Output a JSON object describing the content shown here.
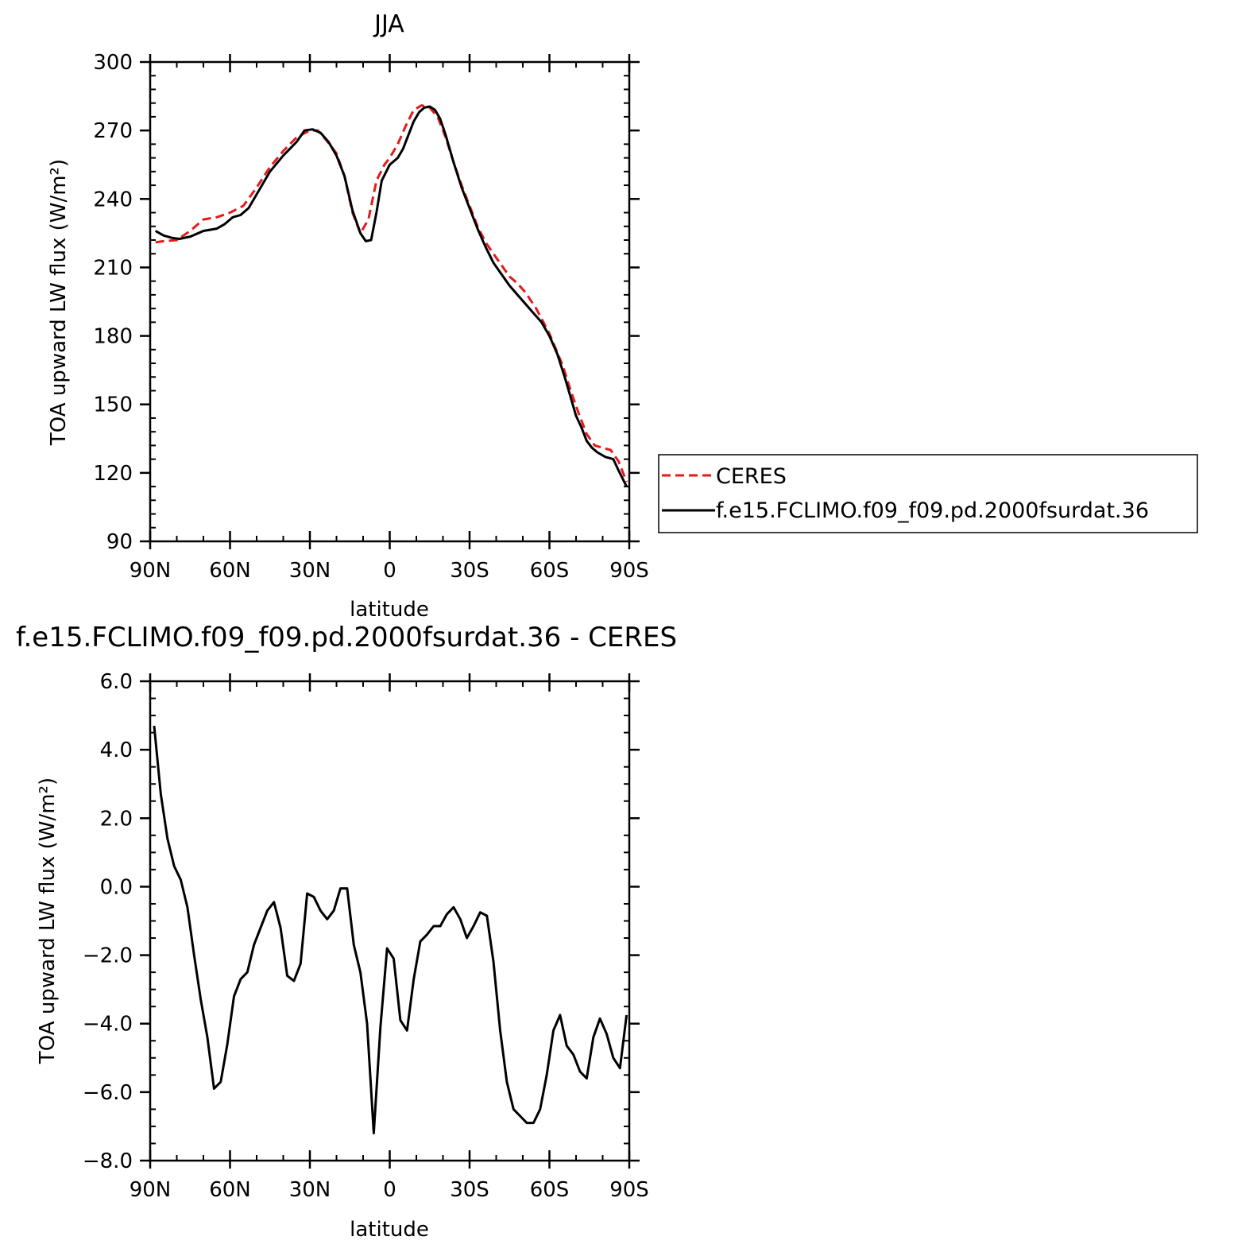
{
  "chart_data": [
    {
      "type": "line",
      "title": "JJA",
      "xlabel": "latitude",
      "ylabel": "TOA upward LW flux (W/m²)",
      "xlim": [
        -90,
        90
      ],
      "ylim": [
        90,
        300
      ],
      "x_ticks": [
        -90,
        -60,
        -30,
        0,
        30,
        60,
        90
      ],
      "x_tick_labels": [
        "90N",
        "60N",
        "30N",
        "0",
        "30S",
        "60S",
        "90S"
      ],
      "y_ticks": [
        90,
        120,
        150,
        180,
        210,
        240,
        270,
        300
      ],
      "y_tick_labels": [
        "90",
        "120",
        "150",
        "180",
        "210",
        "240",
        "270",
        "300"
      ],
      "legend_position": "right",
      "series": [
        {
          "name": "CERES",
          "color": "#e41a1c",
          "dash": "dashed",
          "x": [
            -88,
            -85,
            -80,
            -75,
            -70,
            -65,
            -60,
            -55,
            -50,
            -45,
            -40,
            -35,
            -30,
            -27,
            -24,
            -20,
            -17,
            -14,
            -11,
            -8,
            -5,
            -2,
            0,
            3,
            6,
            9,
            12,
            15,
            18,
            21,
            24,
            27,
            30,
            33,
            36,
            39,
            42,
            45,
            48,
            51,
            55,
            60,
            65,
            68,
            71,
            74,
            77,
            80,
            83,
            86,
            89
          ],
          "values": [
            221,
            221.5,
            222,
            226,
            231,
            232,
            234,
            237,
            245,
            254,
            261,
            267,
            270,
            270,
            266,
            260,
            250,
            234,
            225,
            231,
            248,
            255,
            258,
            264,
            272,
            279,
            281,
            280,
            276,
            267,
            256,
            246,
            237,
            228,
            221,
            216,
            211,
            206,
            203,
            199,
            192,
            181,
            167,
            156,
            146,
            137,
            132,
            131,
            130,
            125,
            116
          ]
        },
        {
          "name": "f.e15.FCLIMO.f09_f09.pd.2000fsurdat.36",
          "color": "#000000",
          "dash": "solid",
          "x": [
            -88,
            -85,
            -82,
            -79,
            -75,
            -70,
            -65,
            -62,
            -59,
            -56,
            -53,
            -50,
            -45,
            -40,
            -35,
            -32,
            -29,
            -26,
            -23,
            -20,
            -17,
            -14,
            -11,
            -9,
            -7,
            -5,
            -3,
            0,
            3,
            5,
            7,
            9,
            11,
            13,
            15,
            17,
            19,
            21,
            24,
            27,
            30,
            33,
            36,
            39,
            42,
            45,
            48,
            51,
            54,
            57,
            60,
            63,
            66,
            68,
            70,
            72,
            74,
            76,
            78,
            81,
            84,
            86,
            89
          ],
          "values": [
            226,
            224,
            223,
            222.5,
            223.5,
            226,
            227,
            229,
            232,
            233,
            236,
            242,
            252,
            259,
            265,
            270,
            270.5,
            269,
            265,
            259,
            250,
            235,
            225,
            221.5,
            222,
            234,
            248,
            255,
            258,
            262,
            268,
            274,
            278,
            280,
            280.5,
            279,
            275,
            268,
            256,
            245,
            236,
            227,
            219,
            212,
            207,
            202,
            198,
            194,
            190,
            186,
            180,
            172,
            161,
            153,
            145,
            140,
            134,
            131,
            129,
            127,
            126,
            121,
            114
          ]
        }
      ]
    },
    {
      "type": "line",
      "title": "f.e15.FCLIMO.f09_f09.pd.2000fsurdat.36 - CERES",
      "xlabel": "latitude",
      "ylabel": "TOA upward LW flux (W/m²)",
      "xlim": [
        -90,
        90
      ],
      "ylim": [
        -8,
        6
      ],
      "x_ticks": [
        -90,
        -60,
        -30,
        0,
        30,
        60,
        90
      ],
      "x_tick_labels": [
        "90N",
        "60N",
        "30N",
        "0",
        "30S",
        "60S",
        "90S"
      ],
      "y_ticks": [
        -8,
        -6,
        -4,
        -2,
        0,
        2,
        4,
        6
      ],
      "y_tick_labels": [
        "−8.0",
        "−6.0",
        "−4.0",
        "−2.0",
        "0.0",
        "2.0",
        "4.0",
        "6.0"
      ],
      "series": [
        {
          "name": "",
          "color": "#000000",
          "dash": "solid",
          "x": [
            -88.5,
            -86,
            -83.5,
            -81,
            -78.5,
            -76,
            -73.5,
            -71,
            -68.5,
            -66,
            -63.5,
            -61,
            -58.5,
            -56,
            -53.5,
            -51,
            -48.5,
            -46,
            -43.5,
            -41,
            -38.5,
            -36,
            -33.5,
            -31,
            -28.5,
            -26,
            -23.5,
            -21,
            -18.5,
            -16,
            -13.5,
            -11,
            -8.5,
            -6,
            -3.5,
            -1,
            1.5,
            4,
            6.5,
            9,
            11.5,
            14,
            16.5,
            19,
            21.5,
            24,
            26.5,
            29,
            31.5,
            34,
            36.5,
            39,
            41.5,
            44,
            46.5,
            49,
            51.5,
            54,
            56.5,
            59,
            61.5,
            64,
            66.5,
            69,
            71.5,
            74,
            76.5,
            79,
            81.5,
            84,
            86.5,
            89
          ],
          "values": [
            4.7,
            2.7,
            1.4,
            0.6,
            0.2,
            -0.6,
            -2.0,
            -3.3,
            -4.4,
            -5.9,
            -5.7,
            -4.6,
            -3.2,
            -2.7,
            -2.5,
            -1.7,
            -1.2,
            -0.7,
            -0.45,
            -1.2,
            -2.6,
            -2.75,
            -2.25,
            -0.2,
            -0.3,
            -0.7,
            -0.95,
            -0.7,
            -0.05,
            -0.05,
            -1.7,
            -2.5,
            -4.0,
            -7.2,
            -4.1,
            -1.8,
            -2.1,
            -3.9,
            -4.2,
            -2.7,
            -1.6,
            -1.4,
            -1.15,
            -1.15,
            -0.8,
            -0.6,
            -0.95,
            -1.5,
            -1.15,
            -0.75,
            -0.85,
            -2.2,
            -4.2,
            -5.7,
            -6.5,
            -6.7,
            -6.9,
            -6.9,
            -6.5,
            -5.5,
            -4.2,
            -3.75,
            -4.65,
            -4.9,
            -5.4,
            -5.6,
            -4.4,
            -3.85,
            -4.3,
            -5.0,
            -5.3,
            -3.75
          ]
        }
      ]
    }
  ]
}
